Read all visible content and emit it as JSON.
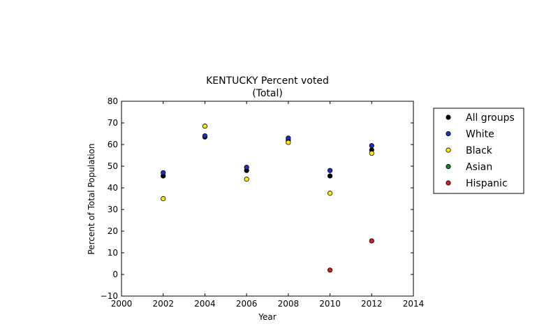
{
  "chart_data": {
    "type": "scatter",
    "title": "KENTUCKY Percent voted",
    "subtitle": "(Total)",
    "xlabel": "Year",
    "ylabel": "Percent of Total Population",
    "xlim": [
      2000,
      2014
    ],
    "ylim": [
      -10,
      80
    ],
    "xticks": [
      2000,
      2002,
      2004,
      2006,
      2008,
      2010,
      2012,
      2014
    ],
    "yticks": [
      -10,
      0,
      10,
      20,
      30,
      40,
      50,
      60,
      70,
      80
    ],
    "grid": false,
    "legend_position": "outside-right",
    "series": [
      {
        "name": "All groups",
        "color": "#000000",
        "x": [
          2002,
          2004,
          2006,
          2008,
          2010,
          2012
        ],
        "y": [
          45.5,
          63.5,
          48,
          62,
          45.5,
          57.5
        ]
      },
      {
        "name": "White",
        "color": "#1f2fbf",
        "x": [
          2002,
          2004,
          2006,
          2008,
          2010,
          2012
        ],
        "y": [
          47,
          64,
          49.5,
          63,
          48,
          59.5
        ]
      },
      {
        "name": "Black",
        "color": "#ffea00",
        "x": [
          2002,
          2004,
          2006,
          2008,
          2010,
          2012
        ],
        "y": [
          35,
          68.5,
          44,
          61,
          37.5,
          56
        ]
      },
      {
        "name": "Asian",
        "color": "#1a7f1a",
        "x": [],
        "y": []
      },
      {
        "name": "Hispanic",
        "color": "#d11f1f",
        "x": [
          2010,
          2012
        ],
        "y": [
          2,
          15.5
        ]
      }
    ]
  }
}
